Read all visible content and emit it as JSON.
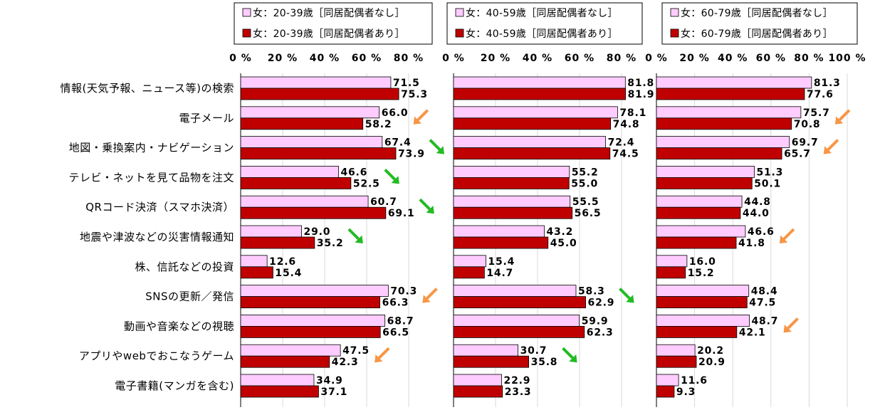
{
  "chart_data": {
    "type": "bar",
    "orientation": "horizontal",
    "colors": {
      "none": "#ffccff",
      "with": "#c00000",
      "down_green": "#22bb22",
      "down_orange": "#f79646"
    },
    "categories": [
      "情報(天気予報、ニュース等)の検索",
      "電子メール",
      "地図・乗換案内・ナビゲーション",
      "テレビ・ネットを見て品物を注文",
      "QRコード決済（スマホ決済）",
      "地震や津波などの災害情報通知",
      "株、信託などの投資",
      "SNSの更新／発信",
      "動画や音楽などの視聴",
      "アプリやwebでおこなうゲーム",
      "電子書籍(マンガを含む)"
    ],
    "panels": [
      {
        "xlim": [
          0,
          80
        ],
        "ticks": [
          "0 %",
          "20 %",
          "40 %",
          "60 %",
          "80 %"
        ],
        "legend": [
          "女：20-39歳［同居配偶者なし］",
          "女：20-39歳［同居配偶者あり］"
        ],
        "series": [
          {
            "name": "女：20-39歳［同居配偶者なし］",
            "values": [
              71.5,
              66.0,
              67.4,
              46.6,
              60.7,
              29.0,
              12.6,
              70.3,
              68.7,
              47.5,
              34.9
            ]
          },
          {
            "name": "女：20-39歳［同居配偶者あり］",
            "values": [
              75.3,
              58.2,
              73.9,
              52.5,
              69.1,
              35.2,
              15.4,
              66.3,
              66.5,
              42.3,
              37.1
            ]
          }
        ],
        "arrows": [
          {
            "row": 1,
            "kind": "orange"
          },
          {
            "row": 2,
            "kind": "green"
          },
          {
            "row": 3,
            "kind": "green"
          },
          {
            "row": 4,
            "kind": "green"
          },
          {
            "row": 5,
            "kind": "green"
          },
          {
            "row": 7,
            "kind": "orange"
          },
          {
            "row": 9,
            "kind": "orange"
          }
        ]
      },
      {
        "xlim": [
          0,
          80
        ],
        "ticks": [
          "0 %",
          "20 %",
          "40 %",
          "60 %",
          "80 %"
        ],
        "legend": [
          "女：40-59歳［同居配偶者なし］",
          "女：40-59歳［同居配偶者あり］"
        ],
        "series": [
          {
            "name": "女：40-59歳［同居配偶者なし］",
            "values": [
              81.8,
              78.1,
              72.4,
              55.2,
              55.5,
              43.2,
              15.4,
              58.3,
              59.9,
              30.7,
              22.9
            ]
          },
          {
            "name": "女：40-59歳［同居配偶者あり］",
            "values": [
              81.9,
              74.8,
              74.5,
              55.0,
              56.5,
              45.0,
              14.7,
              62.9,
              62.3,
              35.8,
              23.3
            ]
          }
        ],
        "arrows": [
          {
            "row": 7,
            "kind": "green"
          },
          {
            "row": 9,
            "kind": "green"
          }
        ]
      },
      {
        "xlim": [
          0,
          100
        ],
        "ticks": [
          "0 %",
          "20 %",
          "40 %",
          "60 %",
          "80 %",
          "100 %"
        ],
        "legend": [
          "女：60-79歳［同居配偶者なし］",
          "女：60-79歳［同居配偶者あり］"
        ],
        "series": [
          {
            "name": "女：60-79歳［同居配偶者なし］",
            "values": [
              81.3,
              75.7,
              69.7,
              51.3,
              44.8,
              46.6,
              16.0,
              48.4,
              48.7,
              20.2,
              11.6
            ]
          },
          {
            "name": "女：60-79歳［同居配偶者あり］",
            "values": [
              77.6,
              70.8,
              65.7,
              50.1,
              44.0,
              41.8,
              15.2,
              47.5,
              42.1,
              20.9,
              9.3
            ]
          }
        ],
        "arrows": [
          {
            "row": 1,
            "kind": "orange"
          },
          {
            "row": 2,
            "kind": "orange"
          },
          {
            "row": 5,
            "kind": "orange"
          },
          {
            "row": 8,
            "kind": "orange"
          }
        ]
      }
    ]
  }
}
